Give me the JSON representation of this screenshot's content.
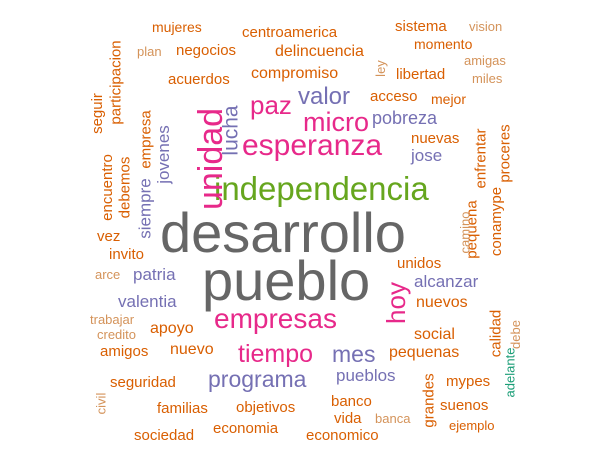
{
  "colors": {
    "gray": "#666666",
    "green": "#66a61e",
    "magenta": "#e7298a",
    "purple": "#7570b3",
    "orange": "#d95f02",
    "teal": "#1b9e77",
    "tan": "#d4935a"
  },
  "words": [
    {
      "text": "desarrollo",
      "color": "gray"
    },
    {
      "text": "pueblo",
      "color": "gray"
    },
    {
      "text": "independencia",
      "color": "green"
    },
    {
      "text": "esperanza",
      "color": "magenta"
    },
    {
      "text": "unidad",
      "color": "magenta"
    },
    {
      "text": "micro",
      "color": "magenta"
    },
    {
      "text": "paz",
      "color": "magenta"
    },
    {
      "text": "empresas",
      "color": "magenta"
    },
    {
      "text": "hoy",
      "color": "magenta"
    },
    {
      "text": "tiempo",
      "color": "magenta"
    },
    {
      "text": "valor",
      "color": "purple"
    },
    {
      "text": "programa",
      "color": "purple"
    },
    {
      "text": "mes",
      "color": "purple"
    },
    {
      "text": "lucha",
      "color": "purple"
    },
    {
      "text": "pobreza",
      "color": "purple"
    },
    {
      "text": "jovenes",
      "color": "purple"
    },
    {
      "text": "siempre",
      "color": "purple"
    },
    {
      "text": "jose",
      "color": "purple"
    },
    {
      "text": "patria",
      "color": "purple"
    },
    {
      "text": "valentia",
      "color": "purple"
    },
    {
      "text": "alcanzar",
      "color": "purple"
    },
    {
      "text": "pueblos",
      "color": "purple"
    },
    {
      "text": "compromiso",
      "color": "orange"
    },
    {
      "text": "delincuencia",
      "color": "orange"
    },
    {
      "text": "centroamerica",
      "color": "orange"
    },
    {
      "text": "negocios",
      "color": "orange"
    },
    {
      "text": "acuerdos",
      "color": "orange"
    },
    {
      "text": "libertad",
      "color": "orange"
    },
    {
      "text": "sistema",
      "color": "orange"
    },
    {
      "text": "momento",
      "color": "orange"
    },
    {
      "text": "mujeres",
      "color": "orange"
    },
    {
      "text": "acceso",
      "color": "orange"
    },
    {
      "text": "mejor",
      "color": "orange"
    },
    {
      "text": "nuevas",
      "color": "orange"
    },
    {
      "text": "enfrentar",
      "color": "orange"
    },
    {
      "text": "proceres",
      "color": "orange"
    },
    {
      "text": "participacion",
      "color": "orange"
    },
    {
      "text": "empresa",
      "color": "orange"
    },
    {
      "text": "seguir",
      "color": "orange"
    },
    {
      "text": "encuentro",
      "color": "orange"
    },
    {
      "text": "debemos",
      "color": "orange"
    },
    {
      "text": "pequena",
      "color": "orange"
    },
    {
      "text": "conamype",
      "color": "orange"
    },
    {
      "text": "vez",
      "color": "orange"
    },
    {
      "text": "invito",
      "color": "orange"
    },
    {
      "text": "unidos",
      "color": "orange"
    },
    {
      "text": "nuevos",
      "color": "orange"
    },
    {
      "text": "social",
      "color": "orange"
    },
    {
      "text": "apoyo",
      "color": "orange"
    },
    {
      "text": "nuevo",
      "color": "orange"
    },
    {
      "text": "amigos",
      "color": "orange"
    },
    {
      "text": "pequenas",
      "color": "orange"
    },
    {
      "text": "calidad",
      "color": "orange"
    },
    {
      "text": "seguridad",
      "color": "orange"
    },
    {
      "text": "mypes",
      "color": "orange"
    },
    {
      "text": "grandes",
      "color": "orange"
    },
    {
      "text": "familias",
      "color": "orange"
    },
    {
      "text": "objetivos",
      "color": "orange"
    },
    {
      "text": "banco",
      "color": "orange"
    },
    {
      "text": "vida",
      "color": "orange"
    },
    {
      "text": "suenos",
      "color": "orange"
    },
    {
      "text": "sociedad",
      "color": "orange"
    },
    {
      "text": "economia",
      "color": "orange"
    },
    {
      "text": "economico",
      "color": "orange"
    },
    {
      "text": "ejemplo",
      "color": "orange"
    },
    {
      "text": "vision",
      "color": "tan"
    },
    {
      "text": "plan",
      "color": "tan"
    },
    {
      "text": "ley",
      "color": "tan"
    },
    {
      "text": "amigas",
      "color": "tan"
    },
    {
      "text": "miles",
      "color": "tan"
    },
    {
      "text": "camino",
      "color": "tan"
    },
    {
      "text": "arce",
      "color": "tan"
    },
    {
      "text": "trabajar",
      "color": "tan"
    },
    {
      "text": "credito",
      "color": "tan"
    },
    {
      "text": "debe",
      "color": "tan"
    },
    {
      "text": "civil",
      "color": "tan"
    },
    {
      "text": "banca",
      "color": "tan"
    },
    {
      "text": "adelante",
      "color": "teal"
    }
  ]
}
